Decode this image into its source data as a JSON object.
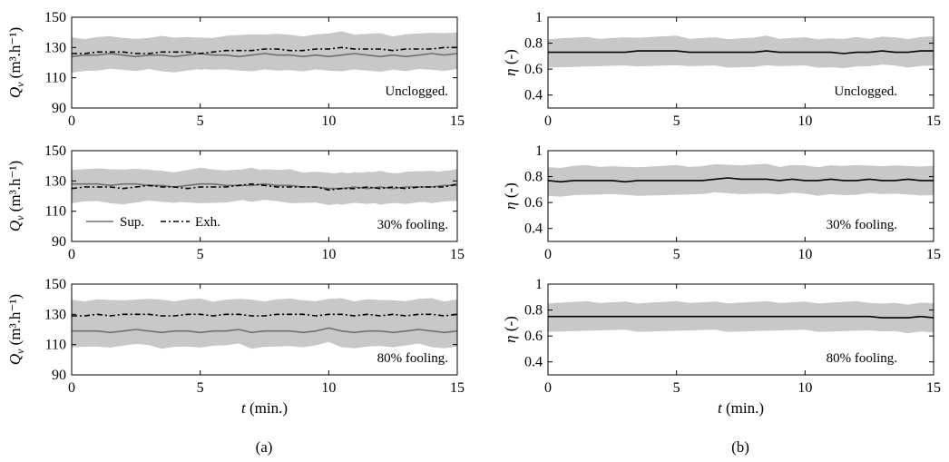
{
  "chart_data": [
    {
      "type": "line",
      "panel": "a",
      "row": 0,
      "annotation": "Unclogged.",
      "xlabel": "",
      "ylabel": "Q_v (m³.h⁻¹)",
      "xlim": [
        0,
        15
      ],
      "ylim": [
        90,
        150
      ],
      "xticks": [
        0,
        5,
        10,
        15
      ],
      "yticks": [
        90,
        110,
        130,
        150
      ],
      "band": {
        "lower_offset": -10,
        "upper_offset": 10
      },
      "x": [
        0,
        0.5,
        1,
        1.5,
        2,
        2.5,
        3,
        3.5,
        4,
        4.5,
        5,
        5.5,
        6,
        6.5,
        7,
        7.5,
        8,
        8.5,
        9,
        9.5,
        10,
        10.5,
        11,
        11.5,
        12,
        12.5,
        13,
        13.5,
        14,
        14.5,
        15
      ],
      "series": [
        {
          "name": "Sup.",
          "style": "solid",
          "values": [
            124,
            125,
            125,
            126,
            125,
            124,
            125,
            125,
            124,
            125,
            126,
            125,
            125,
            124,
            125,
            126,
            125,
            125,
            124,
            125,
            124,
            125,
            126,
            125,
            124,
            125,
            124,
            125,
            126,
            125,
            126
          ]
        },
        {
          "name": "Exh.",
          "style": "dashdot",
          "values": [
            126,
            126,
            127,
            127,
            127,
            126,
            126,
            127,
            127,
            127,
            126,
            127,
            128,
            128,
            128,
            129,
            129,
            128,
            128,
            129,
            129,
            130,
            129,
            129,
            129,
            128,
            129,
            129,
            129,
            130,
            130
          ]
        }
      ]
    },
    {
      "type": "line",
      "panel": "a",
      "row": 1,
      "annotation": "30% fooling.",
      "xlabel": "",
      "ylabel": "Q_v (m³.h⁻¹)",
      "xlim": [
        0,
        15
      ],
      "ylim": [
        90,
        150
      ],
      "xticks": [
        0,
        5,
        10,
        15
      ],
      "yticks": [
        90,
        110,
        130,
        150
      ],
      "legend": {
        "placement": "lower-left",
        "entries": [
          "Sup.",
          "Exh."
        ]
      },
      "band": {
        "lower_offset": -10,
        "upper_offset": 10
      },
      "x": [
        0,
        0.5,
        1,
        1.5,
        2,
        2.5,
        3,
        3.5,
        4,
        4.5,
        5,
        5.5,
        6,
        6.5,
        7,
        7.5,
        8,
        8.5,
        9,
        9.5,
        10,
        10.5,
        11,
        11.5,
        12,
        12.5,
        13,
        13.5,
        14,
        14.5,
        15
      ],
      "series": [
        {
          "name": "Sup.",
          "style": "solid",
          "values": [
            128,
            128,
            128,
            127,
            128,
            128,
            127,
            127,
            126,
            127,
            128,
            128,
            127,
            127,
            127,
            128,
            127,
            127,
            126,
            126,
            125,
            125,
            126,
            125,
            126,
            125,
            126,
            126,
            126,
            127,
            127
          ]
        },
        {
          "name": "Exh.",
          "style": "dashdot",
          "values": [
            125,
            126,
            126,
            126,
            125,
            126,
            127,
            126,
            126,
            125,
            126,
            126,
            126,
            127,
            128,
            127,
            126,
            126,
            126,
            126,
            124,
            125,
            125,
            126,
            125,
            126,
            125,
            126,
            126,
            126,
            128
          ]
        }
      ]
    },
    {
      "type": "line",
      "panel": "a",
      "row": 2,
      "annotation": "80% fooling.",
      "xlabel": "t (min.)",
      "ylabel": "Q_v (m³.h⁻¹)",
      "xlim": [
        0,
        15
      ],
      "ylim": [
        90,
        150
      ],
      "xticks": [
        0,
        5,
        10,
        15
      ],
      "yticks": [
        90,
        110,
        130,
        150
      ],
      "band": {
        "lower_offset": -10,
        "upper_offset": 10
      },
      "x": [
        0,
        0.5,
        1,
        1.5,
        2,
        2.5,
        3,
        3.5,
        4,
        4.5,
        5,
        5.5,
        6,
        6.5,
        7,
        7.5,
        8,
        8.5,
        9,
        9.5,
        10,
        10.5,
        11,
        11.5,
        12,
        12.5,
        13,
        13.5,
        14,
        14.5,
        15
      ],
      "series": [
        {
          "name": "Sup.",
          "style": "solid",
          "values": [
            119,
            119,
            119,
            118,
            119,
            120,
            119,
            118,
            119,
            119,
            118,
            119,
            119,
            120,
            118,
            119,
            119,
            119,
            118,
            119,
            121,
            119,
            118,
            119,
            119,
            118,
            119,
            120,
            119,
            118,
            119
          ]
        },
        {
          "name": "Exh.",
          "style": "dashdot",
          "values": [
            129,
            129,
            130,
            129,
            130,
            130,
            130,
            129,
            129,
            130,
            130,
            129,
            130,
            130,
            129,
            129,
            130,
            130,
            130,
            129,
            130,
            130,
            129,
            130,
            129,
            130,
            129,
            130,
            130,
            129,
            130
          ]
        }
      ]
    },
    {
      "type": "line",
      "panel": "b",
      "row": 0,
      "annotation": "Unclogged.",
      "xlabel": "",
      "ylabel": "η (-)",
      "xlim": [
        0,
        15
      ],
      "ylim": [
        0.3,
        1.0
      ],
      "xticks": [
        0,
        5,
        10,
        15
      ],
      "yticks": [
        0.4,
        0.6,
        0.8,
        1
      ],
      "band": {
        "lower_offset": -0.11,
        "upper_offset": 0.11
      },
      "x": [
        0,
        0.5,
        1,
        1.5,
        2,
        2.5,
        3,
        3.5,
        4,
        4.5,
        5,
        5.5,
        6,
        6.5,
        7,
        7.5,
        8,
        8.5,
        9,
        9.5,
        10,
        10.5,
        11,
        11.5,
        12,
        12.5,
        13,
        13.5,
        14,
        14.5,
        15
      ],
      "series": [
        {
          "name": "",
          "style": "solid",
          "values": [
            0.73,
            0.73,
            0.73,
            0.73,
            0.73,
            0.73,
            0.73,
            0.74,
            0.74,
            0.74,
            0.74,
            0.73,
            0.73,
            0.73,
            0.73,
            0.73,
            0.73,
            0.74,
            0.73,
            0.73,
            0.73,
            0.73,
            0.73,
            0.72,
            0.73,
            0.73,
            0.74,
            0.73,
            0.73,
            0.74,
            0.74
          ]
        }
      ]
    },
    {
      "type": "line",
      "panel": "b",
      "row": 1,
      "annotation": "30% fooling.",
      "xlabel": "",
      "ylabel": "η (-)",
      "xlim": [
        0,
        15
      ],
      "ylim": [
        0.3,
        1.0
      ],
      "xticks": [
        0,
        5,
        10,
        15
      ],
      "yticks": [
        0.4,
        0.6,
        0.8,
        1
      ],
      "band": {
        "lower_offset": -0.11,
        "upper_offset": 0.11
      },
      "x": [
        0,
        0.5,
        1,
        1.5,
        2,
        2.5,
        3,
        3.5,
        4,
        4.5,
        5,
        5.5,
        6,
        6.5,
        7,
        7.5,
        8,
        8.5,
        9,
        9.5,
        10,
        10.5,
        11,
        11.5,
        12,
        12.5,
        13,
        13.5,
        14,
        14.5,
        15
      ],
      "series": [
        {
          "name": "",
          "style": "solid",
          "values": [
            0.77,
            0.76,
            0.77,
            0.77,
            0.77,
            0.77,
            0.76,
            0.77,
            0.77,
            0.77,
            0.77,
            0.77,
            0.77,
            0.78,
            0.79,
            0.78,
            0.78,
            0.78,
            0.77,
            0.78,
            0.77,
            0.77,
            0.78,
            0.77,
            0.77,
            0.78,
            0.77,
            0.77,
            0.78,
            0.77,
            0.77
          ]
        }
      ]
    },
    {
      "type": "line",
      "panel": "b",
      "row": 2,
      "annotation": "80% fooling.",
      "xlabel": "t (min.)",
      "ylabel": "η (-)",
      "xlim": [
        0,
        15
      ],
      "ylim": [
        0.3,
        1.0
      ],
      "xticks": [
        0,
        5,
        10,
        15
      ],
      "yticks": [
        0.4,
        0.6,
        0.8,
        1
      ],
      "band": {
        "lower_offset": -0.11,
        "upper_offset": 0.11
      },
      "x": [
        0,
        0.5,
        1,
        1.5,
        2,
        2.5,
        3,
        3.5,
        4,
        4.5,
        5,
        5.5,
        6,
        6.5,
        7,
        7.5,
        8,
        8.5,
        9,
        9.5,
        10,
        10.5,
        11,
        11.5,
        12,
        12.5,
        13,
        13.5,
        14,
        14.5,
        15
      ],
      "series": [
        {
          "name": "",
          "style": "solid",
          "values": [
            0.75,
            0.75,
            0.75,
            0.75,
            0.75,
            0.75,
            0.75,
            0.75,
            0.75,
            0.75,
            0.75,
            0.75,
            0.75,
            0.75,
            0.75,
            0.75,
            0.75,
            0.75,
            0.75,
            0.75,
            0.75,
            0.75,
            0.75,
            0.75,
            0.75,
            0.75,
            0.74,
            0.74,
            0.74,
            0.75,
            0.74
          ]
        }
      ]
    }
  ],
  "captions": {
    "a": "(a)",
    "b": "(b)"
  },
  "colors": {
    "band": "#c8c8c8",
    "sup_line": "#707070",
    "exh_line": "#000000",
    "eta_line": "#000000",
    "axis": "#000000"
  }
}
